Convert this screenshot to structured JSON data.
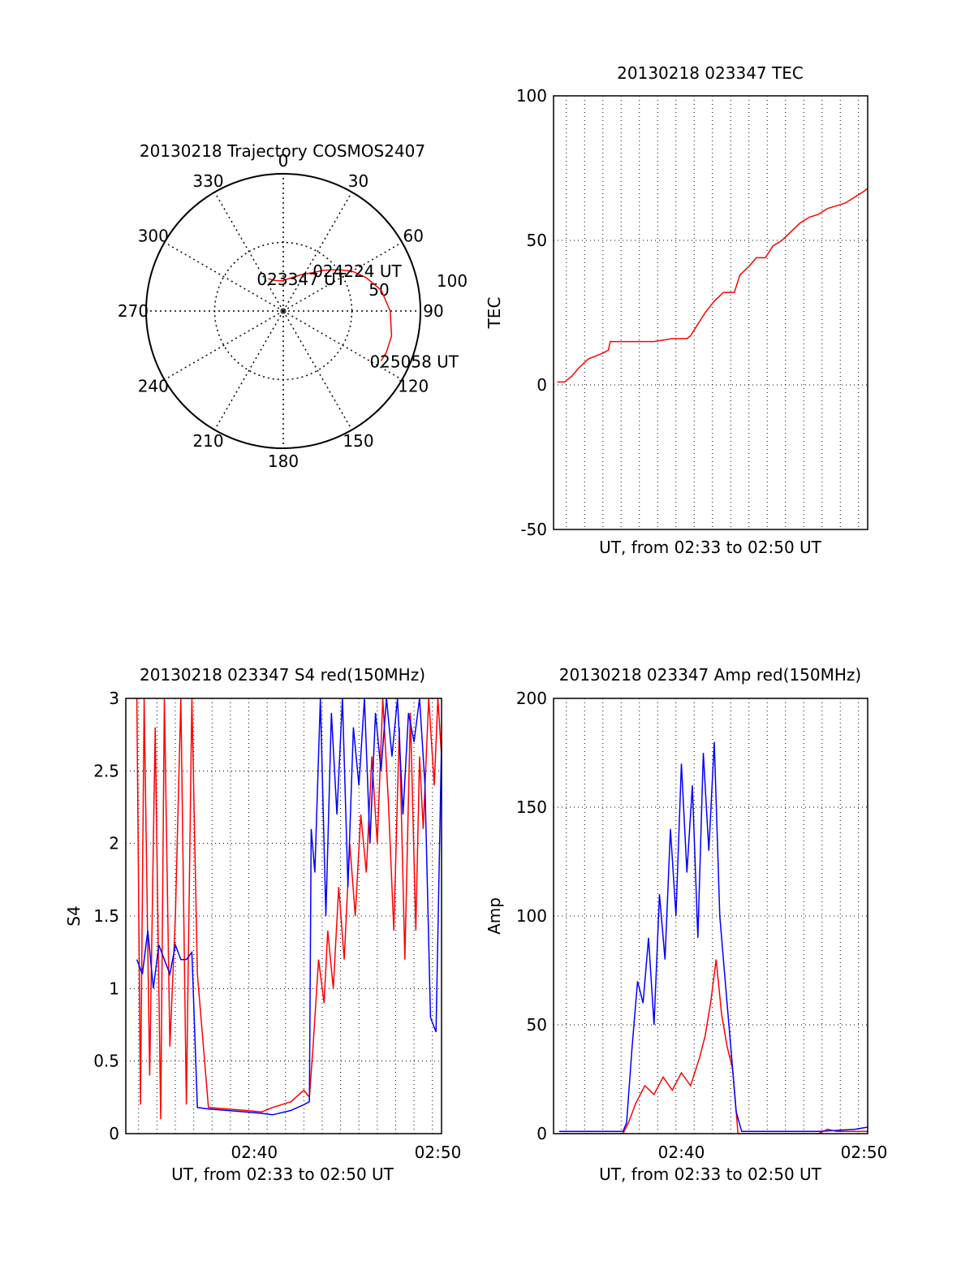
{
  "chart_data": [
    {
      "type": "polar",
      "title": "20130218 Trajectory COSMOS2407",
      "angle_labels": [
        "0",
        "30",
        "60",
        "90",
        "120",
        "150",
        "180",
        "210",
        "240",
        "270",
        "300",
        "330"
      ],
      "radial_labels": [
        "50",
        "100"
      ],
      "trajectory": [
        [
          335,
          26
        ],
        [
          345,
          23
        ],
        [
          358,
          22
        ],
        [
          10,
          24
        ],
        [
          25,
          29
        ],
        [
          37,
          35
        ],
        [
          45,
          42
        ],
        [
          53,
          50
        ],
        [
          60,
          58
        ],
        [
          68,
          65
        ],
        [
          78,
          73
        ],
        [
          90,
          78
        ],
        [
          103,
          81
        ],
        [
          112,
          81
        ],
        [
          117,
          80
        ]
      ],
      "annotations": [
        {
          "text": "023347 UT",
          "az": 335,
          "r": 26
        },
        {
          "text": "024224 UT",
          "az": 45,
          "r": 42
        },
        {
          "text": "025058 UT",
          "az": 117,
          "r": 80
        }
      ],
      "colors": {
        "trajectory": "#ff0000"
      }
    },
    {
      "type": "line",
      "title": "20130218 023347 TEC",
      "xlabel": "UT, from 02:33 to 02:50 UT",
      "ylabel": "TEC",
      "xlim": [
        0,
        17.2
      ],
      "ylim": [
        -50,
        100
      ],
      "yticks": [
        -50,
        0,
        50,
        100
      ],
      "grid": true,
      "series": [
        {
          "color": "#ff0000",
          "x": [
            0.2,
            0.6,
            1.0,
            1.4,
            1.9,
            2.3,
            2.7,
            3.0,
            3.1,
            3.6,
            4.5,
            5.5,
            6.5,
            7.3,
            7.5,
            7.9,
            8.3,
            8.8,
            9.3,
            9.9,
            10.2,
            10.7,
            11.1,
            11.6,
            12.0,
            12.5,
            13.0,
            13.5,
            14.0,
            14.5,
            15.0,
            15.5,
            16.0,
            16.5,
            17.0,
            17.2
          ],
          "y": [
            1,
            1,
            3,
            6,
            9,
            10,
            11,
            12,
            15,
            15,
            15,
            15,
            16,
            16,
            17,
            21,
            25,
            29,
            32,
            32,
            38,
            41,
            44,
            44,
            48,
            50,
            53,
            56,
            58,
            59,
            61,
            62,
            63,
            65,
            67,
            68
          ]
        }
      ]
    },
    {
      "type": "line",
      "title": "20130218 023347 S4 red(150MHz)",
      "xlabel": "UT, from 02:33 to 02:50 UT",
      "ylabel": "S4",
      "xlim": [
        0,
        17.2
      ],
      "ylim": [
        0,
        3
      ],
      "yticks": [
        "0",
        "0.5",
        "1",
        "1.5",
        "2",
        "2.5",
        "3"
      ],
      "xticks": [
        {
          "x": 7,
          "label": "02:40"
        },
        {
          "x": 17,
          "label": "02:50"
        }
      ],
      "grid": true,
      "series": [
        {
          "color": "#ff0000",
          "x": [
            0.6,
            0.8,
            1.0,
            1.3,
            1.6,
            1.9,
            2.1,
            2.4,
            2.7,
            3.0,
            3.3,
            3.6,
            3.9,
            4.5,
            5.5,
            6.5,
            7.4,
            8.0,
            9.0,
            9.7,
            10.0,
            10.2,
            10.5,
            10.8,
            11.0,
            11.3,
            11.6,
            11.9,
            12.2,
            12.5,
            12.8,
            13.1,
            13.4,
            13.7,
            14.0,
            14.3,
            14.6,
            14.9,
            15.2,
            15.5,
            15.8,
            16.0,
            16.2,
            16.5,
            16.8,
            17.0,
            17.2
          ],
          "y": [
            3,
            0.2,
            3,
            0.4,
            2.8,
            0.1,
            3,
            0.6,
            1.5,
            3,
            0.2,
            3,
            1.1,
            0.18,
            0.17,
            0.16,
            0.15,
            0.18,
            0.22,
            0.3,
            0.25,
            0.6,
            1.2,
            0.9,
            1.4,
            1.0,
            1.7,
            1.2,
            2.0,
            1.5,
            2.2,
            1.8,
            2.6,
            2.0,
            3.0,
            2.3,
            1.4,
            2.8,
            1.2,
            2.9,
            1.4,
            2.6,
            2.1,
            3.0,
            2.4,
            3,
            2.6
          ]
        },
        {
          "color": "#0000ff",
          "x": [
            0.6,
            0.9,
            1.2,
            1.5,
            1.8,
            2.1,
            2.4,
            2.7,
            3.0,
            3.3,
            3.6,
            3.9,
            4.5,
            5.5,
            6.5,
            7.4,
            8.0,
            9.0,
            9.7,
            10.0,
            10.1,
            10.3,
            10.6,
            10.9,
            11.2,
            11.5,
            11.8,
            12.1,
            12.4,
            12.7,
            13.0,
            13.3,
            13.6,
            13.9,
            14.2,
            14.5,
            14.8,
            15.1,
            15.4,
            15.7,
            16.0,
            16.3,
            16.6,
            16.9,
            17.2
          ],
          "y": [
            1.2,
            1.1,
            1.4,
            1.0,
            1.3,
            1.2,
            1.1,
            1.3,
            1.2,
            1.2,
            1.25,
            0.18,
            0.17,
            0.16,
            0.15,
            0.14,
            0.13,
            0.16,
            0.2,
            0.22,
            2.1,
            1.8,
            3.0,
            1.5,
            2.9,
            2.2,
            3.0,
            1.7,
            2.8,
            2.4,
            3.0,
            2.0,
            2.9,
            2.5,
            3.0,
            2.6,
            3.0,
            2.2,
            2.9,
            2.7,
            3.0,
            2.4,
            0.8,
            0.7,
            2.7
          ]
        }
      ]
    },
    {
      "type": "line",
      "title": "20130218 023347 Amp red(150MHz)",
      "xlabel": "UT, from 02:33 to 02:50 UT",
      "ylabel": "Amp",
      "xlim": [
        0,
        17.2
      ],
      "ylim": [
        0,
        200
      ],
      "yticks": [
        0,
        50,
        100,
        150,
        200
      ],
      "xticks": [
        {
          "x": 7,
          "label": "02:40"
        },
        {
          "x": 17,
          "label": "02:50"
        }
      ],
      "grid": true,
      "series": [
        {
          "color": "#ff0000",
          "x": [
            0.3,
            2.0,
            3.8,
            4.1,
            4.5,
            5.0,
            5.5,
            6.0,
            6.5,
            7.0,
            7.5,
            8.0,
            8.3,
            8.6,
            8.9,
            9.2,
            9.5,
            9.8,
            10.1,
            12.0,
            14.5,
            15.0,
            15.5,
            17.2
          ],
          "y": [
            0,
            0,
            0,
            5,
            14,
            22,
            18,
            26,
            20,
            28,
            22,
            35,
            45,
            60,
            80,
            55,
            40,
            30,
            0,
            0,
            0,
            2,
            1,
            1
          ]
        },
        {
          "color": "#0000ff",
          "x": [
            0.3,
            2.0,
            3.8,
            4.0,
            4.3,
            4.6,
            4.9,
            5.2,
            5.5,
            5.8,
            6.1,
            6.4,
            6.7,
            7.0,
            7.3,
            7.6,
            7.9,
            8.2,
            8.5,
            8.8,
            9.1,
            9.4,
            9.7,
            10.0,
            10.3,
            12.0,
            14.5,
            16.5,
            17.2
          ],
          "y": [
            1,
            1,
            1,
            5,
            40,
            70,
            60,
            90,
            50,
            110,
            80,
            140,
            100,
            170,
            120,
            160,
            90,
            175,
            130,
            180,
            100,
            70,
            40,
            10,
            1,
            1,
            1,
            2,
            3
          ]
        }
      ]
    }
  ]
}
